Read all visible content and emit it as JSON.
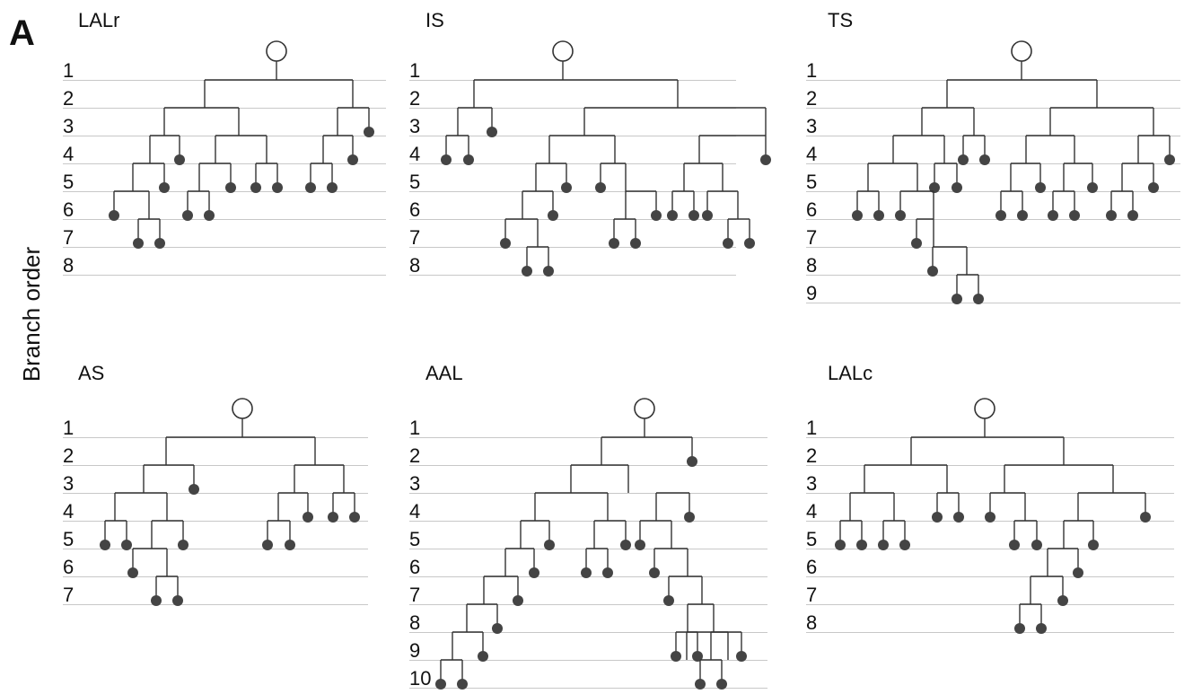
{
  "figure": {
    "panel_letter": "A",
    "y_axis_label": "Branch order"
  },
  "trees": [
    {
      "id": "lalr",
      "title": "LALr",
      "orders": [
        "1",
        "2",
        "3",
        "4",
        "5",
        "6",
        "7",
        "8"
      ]
    },
    {
      "id": "is",
      "title": "IS",
      "orders": [
        "1",
        "2",
        "3",
        "4",
        "5",
        "6",
        "7",
        "8"
      ]
    },
    {
      "id": "ts",
      "title": "TS",
      "orders": [
        "1",
        "2",
        "3",
        "4",
        "5",
        "6",
        "7",
        "8",
        "9"
      ]
    },
    {
      "id": "as",
      "title": "AS",
      "orders": [
        "1",
        "2",
        "3",
        "4",
        "5",
        "6",
        "7"
      ]
    },
    {
      "id": "aal",
      "title": "AAL",
      "orders": [
        "1",
        "2",
        "3",
        "4",
        "5",
        "6",
        "7",
        "8",
        "9",
        "10"
      ]
    },
    {
      "id": "lalc",
      "title": "LALc",
      "orders": [
        "1",
        "2",
        "3",
        "4",
        "5",
        "6",
        "7",
        "8"
      ]
    }
  ],
  "colors": {
    "branch": "#333333",
    "tip": "#444444",
    "rule": "#c8c8c8",
    "root_fill": "#ffffff"
  }
}
